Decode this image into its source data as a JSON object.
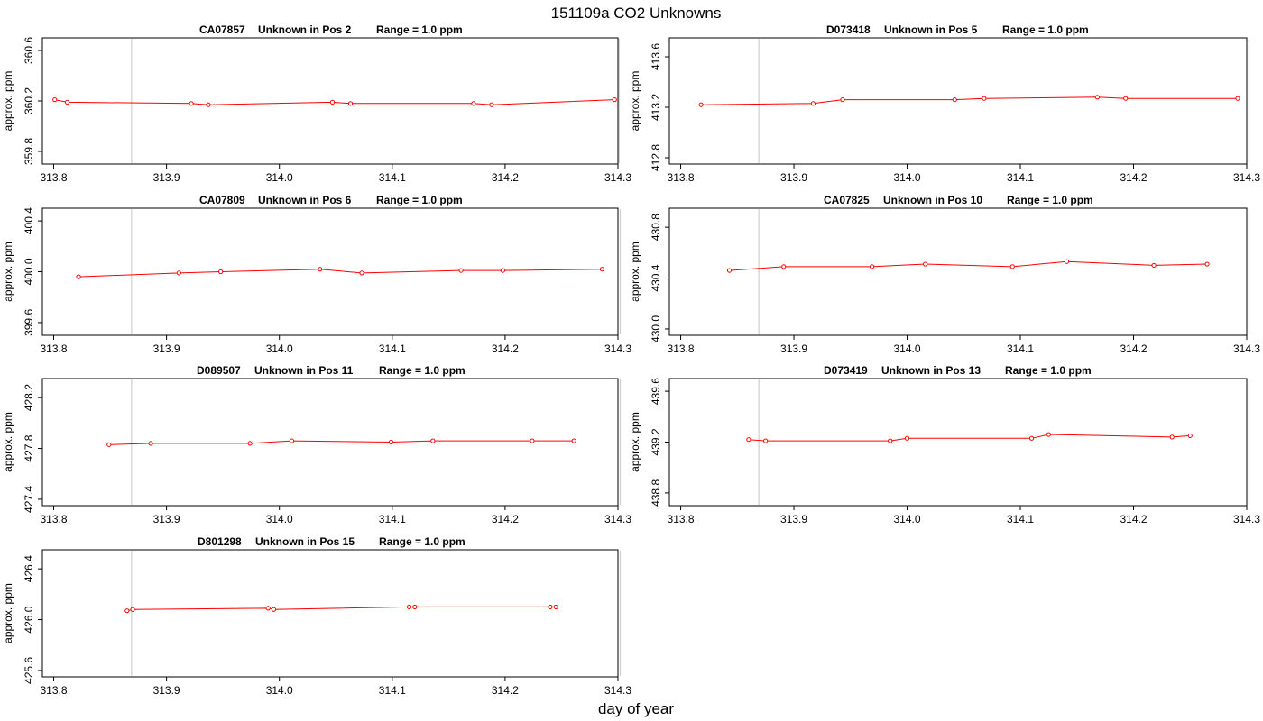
{
  "figure": {
    "title": "151109a  CO2 Unknowns",
    "xlabel": "day of year"
  },
  "chart_data": [
    {
      "type": "line",
      "title_parts": [
        "CA07857",
        "Unknown in Pos 2",
        "Range = 1.0 ppm"
      ],
      "ylabel": "approx. ppm",
      "xlim": [
        313.79,
        314.3
      ],
      "ylim": [
        359.7,
        360.7
      ],
      "xticks": [
        "313.8",
        "313.9",
        "314.0",
        "314.1",
        "314.2",
        "314.3"
      ],
      "yticks": [
        "359.8",
        "360.2",
        "360.6"
      ],
      "reference_lines": [
        313.869,
        314.301
      ],
      "x": [
        313.801,
        313.812,
        313.922,
        313.937,
        314.047,
        314.063,
        314.172,
        314.188,
        314.297
      ],
      "y": [
        360.21,
        360.19,
        360.18,
        360.17,
        360.19,
        360.18,
        360.18,
        360.17,
        360.21
      ]
    },
    {
      "type": "line",
      "title_parts": [
        "D073418",
        "Unknown in Pos 5",
        "Range = 1.0 ppm"
      ],
      "ylabel": "approx. ppm",
      "xlim": [
        313.79,
        314.3
      ],
      "ylim": [
        412.75,
        413.75
      ],
      "xticks": [
        "313.8",
        "313.9",
        "314.0",
        "314.1",
        "314.2",
        "314.3"
      ],
      "yticks": [
        "412.8",
        "413.2",
        "413.6"
      ],
      "reference_lines": [
        313.869,
        314.302
      ],
      "x": [
        313.818,
        313.917,
        313.943,
        314.042,
        314.068,
        314.168,
        314.193,
        314.292
      ],
      "y": [
        413.22,
        413.23,
        413.26,
        413.26,
        413.27,
        413.28,
        413.27,
        413.27
      ]
    },
    {
      "type": "line",
      "title_parts": [
        "CA07809",
        "Unknown in Pos 6",
        "Range = 1.0 ppm"
      ],
      "ylabel": "approx. ppm",
      "xlim": [
        313.79,
        314.3
      ],
      "ylim": [
        399.5,
        400.5
      ],
      "xticks": [
        "313.8",
        "313.9",
        "314.0",
        "314.1",
        "314.2",
        "314.3"
      ],
      "yticks": [
        "399.6",
        "400.0",
        "400.4"
      ],
      "reference_lines": [
        313.869,
        314.302
      ],
      "x": [
        313.822,
        313.911,
        313.948,
        314.036,
        314.073,
        314.161,
        314.198,
        314.286
      ],
      "y": [
        399.96,
        399.99,
        400.0,
        400.02,
        399.99,
        400.01,
        400.01,
        400.02
      ]
    },
    {
      "type": "line",
      "title_parts": [
        "CA07825",
        "Unknown in Pos 10",
        "Range = 1.0 ppm"
      ],
      "ylabel": "approx. ppm",
      "xlim": [
        313.79,
        314.3
      ],
      "ylim": [
        429.95,
        430.95
      ],
      "xticks": [
        "313.8",
        "313.9",
        "314.0",
        "314.1",
        "314.2",
        "314.3"
      ],
      "yticks": [
        "430.0",
        "430.4",
        "430.8"
      ],
      "reference_lines": [
        313.869,
        314.302
      ],
      "x": [
        313.843,
        313.891,
        313.969,
        314.016,
        314.093,
        314.141,
        314.218,
        314.265
      ],
      "y": [
        430.46,
        430.49,
        430.49,
        430.51,
        430.49,
        430.53,
        430.5,
        430.51
      ]
    },
    {
      "type": "line",
      "title_parts": [
        "D089507",
        "Unknown in Pos 11",
        "Range = 1.0 ppm"
      ],
      "ylabel": "approx. ppm",
      "xlim": [
        313.79,
        314.3
      ],
      "ylim": [
        427.35,
        428.35
      ],
      "xticks": [
        "313.8",
        "313.9",
        "314.0",
        "314.1",
        "314.2",
        "314.3"
      ],
      "yticks": [
        "427.4",
        "427.8",
        "428.2"
      ],
      "reference_lines": [
        313.869,
        314.302
      ],
      "x": [
        313.849,
        313.886,
        313.974,
        314.011,
        314.099,
        314.136,
        314.224,
        314.261
      ],
      "y": [
        427.83,
        427.84,
        427.84,
        427.86,
        427.85,
        427.86,
        427.86,
        427.86
      ]
    },
    {
      "type": "line",
      "title_parts": [
        "D073419",
        "Unknown in Pos 13",
        "Range = 1.0 ppm"
      ],
      "ylabel": "approx. ppm",
      "xlim": [
        313.79,
        314.3
      ],
      "ylim": [
        438.7,
        439.7
      ],
      "xticks": [
        "313.8",
        "313.9",
        "314.0",
        "314.1",
        "314.2",
        "314.3"
      ],
      "yticks": [
        "438.8",
        "439.2",
        "439.6"
      ],
      "reference_lines": [
        313.869,
        314.302
      ],
      "x": [
        313.86,
        313.875,
        313.985,
        314.0,
        314.11,
        314.125,
        314.234,
        314.25
      ],
      "y": [
        439.22,
        439.21,
        439.21,
        439.23,
        439.23,
        439.26,
        439.24,
        439.25
      ]
    },
    {
      "type": "line",
      "title_parts": [
        "D801298",
        "Unknown in Pos 15",
        "Range = 1.0 ppm"
      ],
      "ylabel": "approx. ppm",
      "xlim": [
        313.79,
        314.3
      ],
      "ylim": [
        425.55,
        426.55
      ],
      "xticks": [
        "313.8",
        "313.9",
        "314.0",
        "314.1",
        "314.2",
        "314.3"
      ],
      "yticks": [
        "425.6",
        "426.0",
        "426.4"
      ],
      "reference_lines": [
        313.869,
        314.302
      ],
      "x": [
        313.865,
        313.87,
        313.99,
        313.995,
        314.115,
        314.12,
        314.24,
        314.245
      ],
      "y": [
        426.07,
        426.08,
        426.09,
        426.08,
        426.1,
        426.1,
        426.1,
        426.1
      ]
    }
  ]
}
